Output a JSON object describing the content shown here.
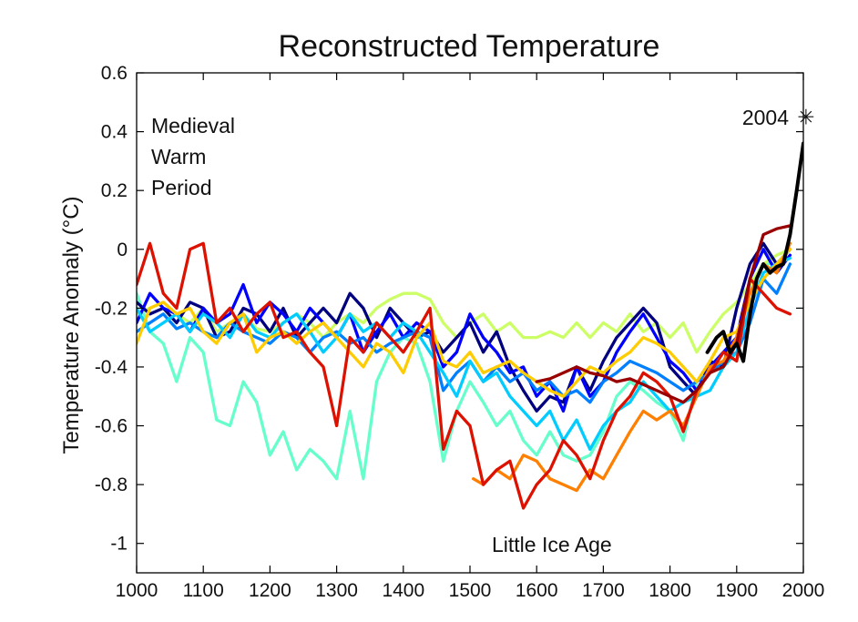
{
  "chart_data": {
    "type": "line",
    "title": "Reconstructed Temperature",
    "xlabel": "",
    "ylabel": "Temperature Anomaly (°C)",
    "xlim": [
      1000,
      2000
    ],
    "ylim": [
      -1.1,
      0.6
    ],
    "xticks": [
      "1000",
      "1100",
      "1200",
      "1300",
      "1400",
      "1500",
      "1600",
      "1700",
      "1800",
      "1900",
      "2000"
    ],
    "yticks": [
      "0.6",
      "0.4",
      "0.2",
      "0",
      "-0.2",
      "-0.4",
      "-0.6",
      "-0.8",
      "-1"
    ],
    "grid": false,
    "annotations": {
      "medieval": [
        "Medieval",
        "Warm",
        "Period"
      ],
      "little_ice_age": "Little Ice Age",
      "year_2004": "2004",
      "star_value": {
        "x": 2004,
        "y": 0.45
      }
    },
    "series": [
      {
        "color": "#66ffcc",
        "x": [
          1000,
          1020,
          1040,
          1060,
          1080,
          1100,
          1120,
          1140,
          1160,
          1180,
          1200,
          1220,
          1240,
          1260,
          1280,
          1300,
          1320,
          1340,
          1360,
          1380,
          1400,
          1420,
          1440,
          1460,
          1480,
          1500,
          1520,
          1540,
          1560,
          1580,
          1600,
          1620,
          1640,
          1660,
          1680,
          1700,
          1720,
          1740,
          1760,
          1780,
          1800,
          1820,
          1840,
          1860,
          1880,
          1900,
          1920,
          1940,
          1960,
          1980
        ],
        "y": [
          -0.15,
          -0.28,
          -0.32,
          -0.45,
          -0.3,
          -0.35,
          -0.58,
          -0.6,
          -0.45,
          -0.52,
          -0.7,
          -0.62,
          -0.75,
          -0.68,
          -0.72,
          -0.78,
          -0.55,
          -0.78,
          -0.45,
          -0.35,
          -0.3,
          -0.32,
          -0.45,
          -0.72,
          -0.55,
          -0.45,
          -0.52,
          -0.6,
          -0.55,
          -0.65,
          -0.7,
          -0.62,
          -0.7,
          -0.72,
          -0.7,
          -0.62,
          -0.5,
          -0.45,
          -0.48,
          -0.52,
          -0.55,
          -0.65,
          -0.45,
          -0.4,
          -0.35,
          -0.3,
          -0.12,
          -0.05,
          -0.05,
          0.0
        ]
      },
      {
        "color": "#ccff66",
        "x": [
          1000,
          1020,
          1040,
          1060,
          1080,
          1100,
          1120,
          1140,
          1160,
          1180,
          1200,
          1220,
          1240,
          1260,
          1280,
          1300,
          1320,
          1340,
          1360,
          1380,
          1400,
          1420,
          1440,
          1460,
          1480,
          1500,
          1520,
          1540,
          1560,
          1580,
          1600,
          1620,
          1640,
          1660,
          1680,
          1700,
          1720,
          1740,
          1760,
          1780,
          1800,
          1820,
          1840,
          1860,
          1880,
          1900,
          1920,
          1940,
          1960,
          1980
        ],
        "y": [
          -0.22,
          -0.2,
          -0.18,
          -0.22,
          -0.25,
          -0.2,
          -0.28,
          -0.25,
          -0.22,
          -0.27,
          -0.28,
          -0.25,
          -0.22,
          -0.25,
          -0.3,
          -0.25,
          -0.22,
          -0.25,
          -0.2,
          -0.17,
          -0.15,
          -0.15,
          -0.17,
          -0.25,
          -0.3,
          -0.25,
          -0.22,
          -0.28,
          -0.25,
          -0.3,
          -0.3,
          -0.28,
          -0.3,
          -0.25,
          -0.3,
          -0.25,
          -0.28,
          -0.22,
          -0.28,
          -0.25,
          -0.3,
          -0.25,
          -0.35,
          -0.28,
          -0.22,
          -0.18,
          -0.12,
          -0.05,
          -0.02,
          0.0
        ]
      },
      {
        "color": "#00007f",
        "x": [
          1000,
          1020,
          1040,
          1060,
          1080,
          1100,
          1120,
          1140,
          1160,
          1180,
          1200,
          1220,
          1240,
          1260,
          1280,
          1300,
          1320,
          1340,
          1360,
          1380,
          1400,
          1420,
          1440,
          1460,
          1480,
          1500,
          1520,
          1540,
          1560,
          1580,
          1600,
          1620,
          1640,
          1660,
          1680,
          1700,
          1720,
          1740,
          1760,
          1780,
          1800,
          1820,
          1840,
          1860,
          1880,
          1900,
          1920,
          1940,
          1960,
          1980
        ],
        "y": [
          -0.18,
          -0.22,
          -0.2,
          -0.25,
          -0.18,
          -0.2,
          -0.3,
          -0.28,
          -0.2,
          -0.22,
          -0.28,
          -0.2,
          -0.3,
          -0.25,
          -0.2,
          -0.25,
          -0.15,
          -0.2,
          -0.3,
          -0.2,
          -0.25,
          -0.3,
          -0.28,
          -0.35,
          -0.3,
          -0.25,
          -0.35,
          -0.28,
          -0.4,
          -0.48,
          -0.55,
          -0.5,
          -0.52,
          -0.4,
          -0.48,
          -0.38,
          -0.3,
          -0.25,
          -0.2,
          -0.25,
          -0.4,
          -0.45,
          -0.5,
          -0.38,
          -0.4,
          -0.2,
          -0.05,
          0.02,
          -0.05,
          0.0
        ]
      },
      {
        "color": "#0000ff",
        "x": [
          1000,
          1020,
          1040,
          1060,
          1080,
          1100,
          1120,
          1140,
          1160,
          1180,
          1200,
          1220,
          1240,
          1260,
          1280,
          1300,
          1320,
          1340,
          1360,
          1380,
          1400,
          1420,
          1440,
          1460,
          1480,
          1500,
          1520,
          1540,
          1560,
          1580,
          1600,
          1620,
          1640,
          1660,
          1680,
          1700,
          1720,
          1740,
          1760,
          1780,
          1800,
          1820,
          1840,
          1860,
          1880,
          1900,
          1920,
          1940,
          1960,
          1980
        ],
        "y": [
          -0.25,
          -0.15,
          -0.2,
          -0.22,
          -0.28,
          -0.2,
          -0.25,
          -0.22,
          -0.12,
          -0.25,
          -0.18,
          -0.22,
          -0.28,
          -0.2,
          -0.25,
          -0.3,
          -0.22,
          -0.35,
          -0.28,
          -0.22,
          -0.3,
          -0.25,
          -0.28,
          -0.4,
          -0.35,
          -0.22,
          -0.3,
          -0.35,
          -0.42,
          -0.4,
          -0.5,
          -0.45,
          -0.55,
          -0.4,
          -0.5,
          -0.45,
          -0.35,
          -0.28,
          -0.22,
          -0.3,
          -0.38,
          -0.42,
          -0.48,
          -0.4,
          -0.35,
          -0.3,
          -0.1,
          0.0,
          -0.08,
          -0.02
        ]
      },
      {
        "color": "#007fff",
        "x": [
          1000,
          1020,
          1040,
          1060,
          1080,
          1100,
          1120,
          1140,
          1160,
          1180,
          1200,
          1220,
          1240,
          1260,
          1280,
          1300,
          1320,
          1340,
          1360,
          1380,
          1400,
          1420,
          1440,
          1460,
          1480,
          1500,
          1520,
          1540,
          1560,
          1580,
          1600,
          1620,
          1640,
          1660,
          1680,
          1700,
          1720,
          1740,
          1760,
          1780,
          1800,
          1820,
          1840,
          1860,
          1880,
          1900,
          1920,
          1940,
          1960,
          1980
        ],
        "y": [
          -0.28,
          -0.25,
          -0.22,
          -0.27,
          -0.25,
          -0.28,
          -0.3,
          -0.25,
          -0.28,
          -0.3,
          -0.32,
          -0.28,
          -0.3,
          -0.35,
          -0.3,
          -0.28,
          -0.32,
          -0.3,
          -0.35,
          -0.32,
          -0.3,
          -0.28,
          -0.3,
          -0.48,
          -0.42,
          -0.38,
          -0.45,
          -0.4,
          -0.45,
          -0.42,
          -0.48,
          -0.45,
          -0.5,
          -0.48,
          -0.52,
          -0.45,
          -0.42,
          -0.38,
          -0.4,
          -0.42,
          -0.45,
          -0.48,
          -0.45,
          -0.42,
          -0.38,
          -0.35,
          -0.25,
          -0.1,
          -0.15,
          -0.05
        ]
      },
      {
        "color": "#00ccff",
        "x": [
          1000,
          1020,
          1040,
          1060,
          1080,
          1100,
          1120,
          1140,
          1160,
          1180,
          1200,
          1220,
          1240,
          1260,
          1280,
          1300,
          1320,
          1340,
          1360,
          1380,
          1400,
          1420,
          1440,
          1460,
          1480,
          1500,
          1520,
          1540,
          1560,
          1580,
          1600,
          1620,
          1640,
          1660,
          1680,
          1700,
          1720,
          1740,
          1760,
          1780,
          1800,
          1820,
          1840,
          1860,
          1880,
          1900,
          1920,
          1940,
          1960,
          1980
        ],
        "y": [
          -0.2,
          -0.28,
          -0.25,
          -0.22,
          -0.28,
          -0.22,
          -0.25,
          -0.3,
          -0.22,
          -0.28,
          -0.3,
          -0.25,
          -0.22,
          -0.28,
          -0.35,
          -0.3,
          -0.22,
          -0.28,
          -0.25,
          -0.3,
          -0.25,
          -0.28,
          -0.35,
          -0.42,
          -0.5,
          -0.38,
          -0.45,
          -0.42,
          -0.5,
          -0.55,
          -0.6,
          -0.55,
          -0.65,
          -0.58,
          -0.68,
          -0.6,
          -0.55,
          -0.52,
          -0.45,
          -0.5,
          -0.55,
          -0.52,
          -0.5,
          -0.48,
          -0.4,
          -0.35,
          -0.2,
          -0.08,
          -0.05,
          -0.03
        ]
      },
      {
        "color": "#ffcc00",
        "x": [
          1000,
          1020,
          1040,
          1060,
          1080,
          1100,
          1120,
          1140,
          1160,
          1180,
          1200,
          1220,
          1240,
          1260,
          1280,
          1300,
          1320,
          1340,
          1360,
          1380,
          1400,
          1420,
          1440,
          1460,
          1480,
          1500,
          1520,
          1540,
          1560,
          1580,
          1600,
          1620,
          1640,
          1660,
          1680,
          1700,
          1720,
          1740,
          1760,
          1780,
          1800,
          1820,
          1840,
          1860,
          1880,
          1900,
          1920,
          1940,
          1960,
          1980
        ],
        "y": [
          -0.32,
          -0.2,
          -0.18,
          -0.22,
          -0.2,
          -0.28,
          -0.32,
          -0.25,
          -0.22,
          -0.35,
          -0.3,
          -0.28,
          -0.32,
          -0.28,
          -0.25,
          -0.3,
          -0.35,
          -0.4,
          -0.32,
          -0.35,
          -0.42,
          -0.3,
          -0.25,
          -0.38,
          -0.4,
          -0.35,
          -0.42,
          -0.4,
          -0.38,
          -0.42,
          -0.45,
          -0.48,
          -0.5,
          -0.45,
          -0.4,
          -0.42,
          -0.38,
          -0.35,
          -0.3,
          -0.32,
          -0.35,
          -0.4,
          -0.45,
          -0.38,
          -0.3,
          -0.28,
          -0.18,
          -0.1,
          -0.05,
          0.0
        ]
      },
      {
        "color": "#ff7f00",
        "x": [
          1505,
          1520,
          1540,
          1560,
          1580,
          1600,
          1620,
          1640,
          1660,
          1680,
          1700,
          1720,
          1740,
          1760,
          1780,
          1800,
          1820,
          1840,
          1860,
          1880,
          1900,
          1920,
          1940,
          1960,
          1980
        ],
        "y": [
          -0.78,
          -0.8,
          -0.75,
          -0.78,
          -0.7,
          -0.72,
          -0.78,
          -0.8,
          -0.82,
          -0.75,
          -0.78,
          -0.7,
          -0.62,
          -0.55,
          -0.58,
          -0.55,
          -0.6,
          -0.5,
          -0.4,
          -0.38,
          -0.3,
          -0.15,
          -0.05,
          -0.08,
          0.02
        ]
      },
      {
        "color": "#dd1100",
        "x": [
          1000,
          1020,
          1040,
          1060,
          1080,
          1100,
          1120,
          1140,
          1160,
          1180,
          1200,
          1220,
          1240,
          1260,
          1280,
          1300,
          1320,
          1340,
          1360,
          1380,
          1400,
          1420,
          1440,
          1460,
          1480,
          1500,
          1520,
          1540,
          1560,
          1580,
          1600,
          1620,
          1640,
          1660,
          1680,
          1700,
          1720,
          1740,
          1760,
          1780,
          1800,
          1820,
          1840,
          1860,
          1880,
          1900,
          1920,
          1940,
          1960,
          1980
        ],
        "y": [
          -0.12,
          0.02,
          -0.15,
          -0.2,
          0.0,
          0.02,
          -0.25,
          -0.2,
          -0.28,
          -0.22,
          -0.18,
          -0.3,
          -0.28,
          -0.35,
          -0.4,
          -0.6,
          -0.3,
          -0.35,
          -0.25,
          -0.3,
          -0.35,
          -0.28,
          -0.2,
          -0.68,
          -0.55,
          -0.6,
          -0.8,
          -0.75,
          -0.72,
          -0.88,
          -0.8,
          -0.75,
          -0.65,
          -0.7,
          -0.78,
          -0.65,
          -0.55,
          -0.5,
          -0.42,
          -0.45,
          -0.5,
          -0.62,
          -0.48,
          -0.42,
          -0.35,
          -0.38,
          -0.1,
          -0.15,
          -0.2,
          -0.22
        ]
      },
      {
        "color": "#990000",
        "x": [
          1600,
          1620,
          1640,
          1660,
          1680,
          1700,
          1720,
          1740,
          1760,
          1780,
          1800,
          1820,
          1840,
          1860,
          1880,
          1900,
          1920,
          1940,
          1960,
          1980
        ],
        "y": [
          -0.45,
          -0.44,
          -0.42,
          -0.4,
          -0.42,
          -0.43,
          -0.45,
          -0.44,
          -0.46,
          -0.48,
          -0.5,
          -0.52,
          -0.48,
          -0.42,
          -0.4,
          -0.32,
          -0.1,
          0.05,
          0.07,
          0.08
        ]
      },
      {
        "color": "#000000",
        "x": [
          1856,
          1870,
          1880,
          1890,
          1900,
          1910,
          1920,
          1930,
          1940,
          1950,
          1960,
          1970,
          1980,
          1990,
          2000
        ],
        "y": [
          -0.35,
          -0.3,
          -0.28,
          -0.35,
          -0.32,
          -0.38,
          -0.22,
          -0.1,
          -0.05,
          -0.08,
          -0.06,
          -0.05,
          0.05,
          0.2,
          0.36
        ]
      }
    ]
  }
}
